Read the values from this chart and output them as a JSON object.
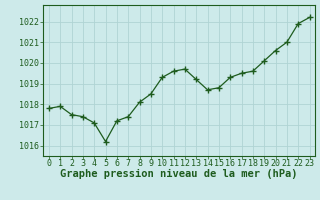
{
  "x": [
    0,
    1,
    2,
    3,
    4,
    5,
    6,
    7,
    8,
    9,
    10,
    11,
    12,
    13,
    14,
    15,
    16,
    17,
    18,
    19,
    20,
    21,
    22,
    23
  ],
  "y": [
    1017.8,
    1017.9,
    1017.5,
    1017.4,
    1017.1,
    1016.2,
    1017.2,
    1017.4,
    1018.1,
    1018.5,
    1019.3,
    1019.6,
    1019.7,
    1019.2,
    1018.7,
    1018.8,
    1019.3,
    1019.5,
    1019.6,
    1020.1,
    1020.6,
    1021.0,
    1021.9,
    1022.2
  ],
  "line_color": "#1e5c1e",
  "marker": "+",
  "marker_size": 4.5,
  "line_width": 0.9,
  "background_color": "#cdeaea",
  "grid_color": "#b0d4d4",
  "xlabel": "Graphe pression niveau de la mer (hPa)",
  "xlabel_fontsize": 7.5,
  "tick_fontsize": 6.0,
  "ylim": [
    1015.5,
    1022.8
  ],
  "yticks": [
    1016,
    1017,
    1018,
    1019,
    1020,
    1021,
    1022
  ],
  "xticks": [
    0,
    1,
    2,
    3,
    4,
    5,
    6,
    7,
    8,
    9,
    10,
    11,
    12,
    13,
    14,
    15,
    16,
    17,
    18,
    19,
    20,
    21,
    22,
    23
  ],
  "tick_label_color": "#1e5c1e",
  "xlabel_color": "#1e5c1e"
}
